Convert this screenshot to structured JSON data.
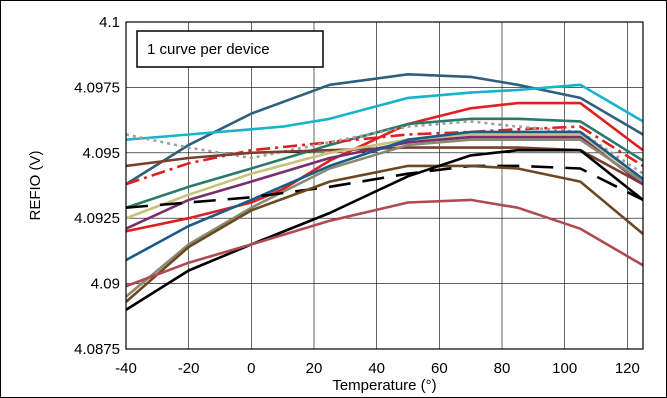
{
  "chart_data": {
    "type": "line",
    "title": "",
    "xlabel": "Temperature (°)",
    "ylabel": "REFIO (V)",
    "xlim": [
      -40,
      125
    ],
    "ylim": [
      4.0875,
      4.1
    ],
    "xticks": [
      "-40",
      "-20",
      "0",
      "20",
      "40",
      "60",
      "80",
      "100",
      "120"
    ],
    "yticks": [
      "4.0875",
      "4.09",
      "4.0925",
      "4.095",
      "4.0975",
      "4.1"
    ],
    "grid": true,
    "annotation": "1 curve per device",
    "series": [
      {
        "color": "#2e5f7f",
        "style": "solid",
        "x": [
          -40,
          -20,
          0,
          25,
          50,
          70,
          85,
          105,
          125
        ],
        "y": [
          4.0938,
          4.0953,
          4.0965,
          4.0976,
          4.098,
          4.0979,
          4.0976,
          4.0971,
          4.0957
        ]
      },
      {
        "color": "#17b3c9",
        "style": "solid",
        "x": [
          -40,
          -20,
          0,
          10,
          25,
          50,
          70,
          85,
          105,
          125
        ],
        "y": [
          4.0955,
          4.0957,
          4.0959,
          4.096,
          4.0963,
          4.0971,
          4.0973,
          4.0974,
          4.0976,
          4.0962
        ]
      },
      {
        "color": "#e02020",
        "style": "solid",
        "x": [
          -40,
          -20,
          0,
          10,
          25,
          50,
          70,
          85,
          105,
          125
        ],
        "y": [
          4.092,
          4.0925,
          4.0931,
          4.0936,
          4.0947,
          4.0961,
          4.0967,
          4.0969,
          4.0969,
          4.0951
        ]
      },
      {
        "color": "#2a7a6a",
        "style": "solid",
        "x": [
          -40,
          -20,
          0,
          25,
          50,
          70,
          85,
          105,
          125
        ],
        "y": [
          4.0929,
          4.0937,
          4.0944,
          4.0953,
          4.0961,
          4.0963,
          4.0963,
          4.0962,
          4.0947
        ]
      },
      {
        "color": "#e02020",
        "style": "dashdot",
        "x": [
          -40,
          -20,
          0,
          25,
          50,
          70,
          85,
          105,
          125
        ],
        "y": [
          4.0938,
          4.0946,
          4.0951,
          4.0954,
          4.0957,
          4.0958,
          4.0959,
          4.096,
          4.0945
        ]
      },
      {
        "color": "#a0a0a0",
        "style": "dotted",
        "x": [
          -40,
          -20,
          0,
          25,
          50,
          70,
          85,
          105,
          125
        ],
        "y": [
          4.0957,
          4.0952,
          4.0948,
          4.0954,
          4.096,
          4.0962,
          4.096,
          4.0958,
          4.0942
        ]
      },
      {
        "color": "#7a3f2e",
        "style": "solid",
        "x": [
          -40,
          -20,
          0,
          25,
          50,
          70,
          85,
          105,
          125
        ],
        "y": [
          4.0945,
          4.0948,
          4.095,
          4.0951,
          4.0952,
          4.0952,
          4.0952,
          4.0951,
          4.0938
        ]
      },
      {
        "color": "#c9c27a",
        "style": "solid",
        "x": [
          -40,
          -20,
          0,
          25,
          50,
          70,
          85,
          105,
          125
        ],
        "y": [
          4.0925,
          4.0934,
          4.0942,
          4.095,
          4.0955,
          4.0957,
          4.0957,
          4.0957,
          4.094
        ]
      },
      {
        "color": "#7a2e6e",
        "style": "solid",
        "x": [
          -40,
          -20,
          0,
          25,
          50,
          70,
          85,
          105,
          125
        ],
        "y": [
          4.0921,
          4.0932,
          4.0939,
          4.0948,
          4.0954,
          4.0956,
          4.0956,
          4.0956,
          4.0938
        ]
      },
      {
        "color": "#1a5b8a",
        "style": "solid",
        "x": [
          -40,
          -20,
          0,
          25,
          50,
          70,
          85,
          105,
          125
        ],
        "y": [
          4.0909,
          4.0922,
          4.0932,
          4.0945,
          4.0955,
          4.0958,
          4.0958,
          4.0958,
          4.094
        ]
      },
      {
        "color": "#8a8a70",
        "style": "solid",
        "x": [
          -40,
          -20,
          0,
          25,
          50,
          70,
          85,
          105,
          125
        ],
        "y": [
          4.0895,
          4.0915,
          4.0929,
          4.0944,
          4.0953,
          4.0955,
          4.0955,
          4.0955,
          4.0939
        ]
      },
      {
        "color": "#000000",
        "style": "dashed",
        "x": [
          -40,
          -20,
          0,
          25,
          50,
          70,
          85,
          105,
          125
        ],
        "y": [
          4.0929,
          4.0931,
          4.0933,
          4.0937,
          4.0942,
          4.0945,
          4.0945,
          4.0944,
          4.0932
        ]
      },
      {
        "color": "#6b4a22",
        "style": "solid",
        "x": [
          -40,
          -20,
          0,
          25,
          50,
          70,
          85,
          105,
          125
        ],
        "y": [
          4.0893,
          4.0914,
          4.0928,
          4.0939,
          4.0945,
          4.0945,
          4.0944,
          4.0939,
          4.0919
        ]
      },
      {
        "color": "#000000",
        "style": "solid",
        "x": [
          -40,
          -20,
          0,
          25,
          50,
          70,
          85,
          105,
          125
        ],
        "y": [
          4.089,
          4.0905,
          4.0915,
          4.0927,
          4.0941,
          4.0949,
          4.0951,
          4.0951,
          4.0932
        ]
      },
      {
        "color": "#b04a52",
        "style": "solid",
        "x": [
          -40,
          -20,
          0,
          25,
          50,
          70,
          85,
          105,
          125
        ],
        "y": [
          4.0899,
          4.0908,
          4.0915,
          4.0924,
          4.0931,
          4.0932,
          4.0929,
          4.0921,
          4.0907
        ]
      }
    ]
  }
}
